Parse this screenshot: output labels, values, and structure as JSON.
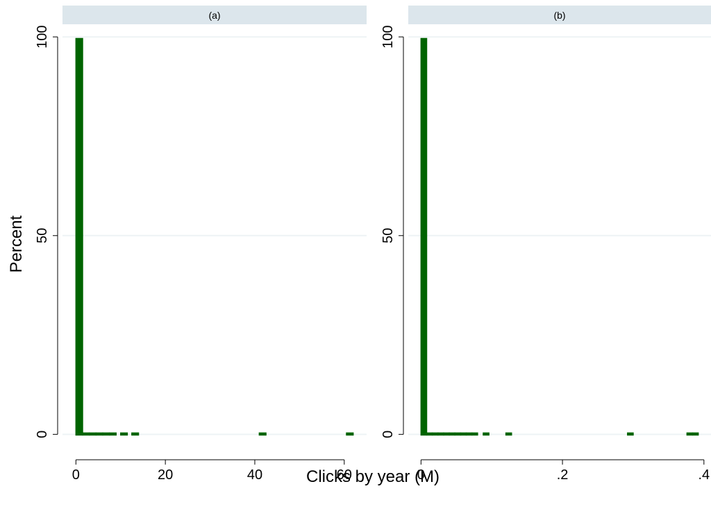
{
  "figure": {
    "xlabel": "Clicks by year (M)",
    "ylabel": "Percent"
  },
  "colors": {
    "bar": "#006400",
    "panel_header": "#dce6ec",
    "grid": "#eef3f5",
    "axis": "#000000"
  },
  "chart_data": [
    {
      "type": "bar",
      "title": "(a)",
      "xlabel": "Clicks by year (M)",
      "ylabel": "Percent",
      "xlim": [
        -3,
        65
      ],
      "ylim": [
        -5,
        103
      ],
      "xticks": [
        0,
        20,
        40,
        60
      ],
      "xtick_labels": [
        "0",
        "20",
        "40",
        "60"
      ],
      "yticks": [
        0,
        50,
        100
      ],
      "ytick_labels": [
        "0",
        "50",
        "100"
      ],
      "grid": true,
      "bin_width": 1.5,
      "bins": [
        {
          "x": 0,
          "value": 99.6
        },
        {
          "x": 1.5,
          "value": 0.25
        },
        {
          "x": 3.0,
          "value": 0.15
        },
        {
          "x": 4.5,
          "value": 0.1
        },
        {
          "x": 6.0,
          "value": 0.1
        },
        {
          "x": 7.5,
          "value": 0.05
        },
        {
          "x": 10.0,
          "value": 0.05
        },
        {
          "x": 12.5,
          "value": 0.05
        },
        {
          "x": 41.0,
          "value": 0.05
        },
        {
          "x": 60.5,
          "value": 0.05
        }
      ]
    },
    {
      "type": "bar",
      "title": "(b)",
      "xlabel": "Clicks by year (M)",
      "ylabel": "Percent",
      "xlim": [
        -0.018,
        0.41
      ],
      "ylim": [
        -5,
        103
      ],
      "xticks": [
        0,
        0.2,
        0.4
      ],
      "xtick_labels": [
        "0",
        ".2",
        ".4"
      ],
      "yticks": [
        0,
        50,
        100
      ],
      "ytick_labels": [
        "0",
        "50",
        "100"
      ],
      "grid": true,
      "bin_width": 0.008,
      "bins": [
        {
          "x": 0,
          "value": 99.6
        },
        {
          "x": 0.008,
          "value": 0.2
        },
        {
          "x": 0.016,
          "value": 0.15
        },
        {
          "x": 0.024,
          "value": 0.1
        },
        {
          "x": 0.032,
          "value": 0.1
        },
        {
          "x": 0.04,
          "value": 0.1
        },
        {
          "x": 0.048,
          "value": 0.05
        },
        {
          "x": 0.056,
          "value": 0.05
        },
        {
          "x": 0.064,
          "value": 0.05
        },
        {
          "x": 0.072,
          "value": 0.05
        },
        {
          "x": 0.088,
          "value": 0.05
        },
        {
          "x": 0.12,
          "value": 0.05
        },
        {
          "x": 0.292,
          "value": 0.05
        },
        {
          "x": 0.376,
          "value": 0.05
        },
        {
          "x": 0.384,
          "value": 0.05
        }
      ]
    }
  ]
}
